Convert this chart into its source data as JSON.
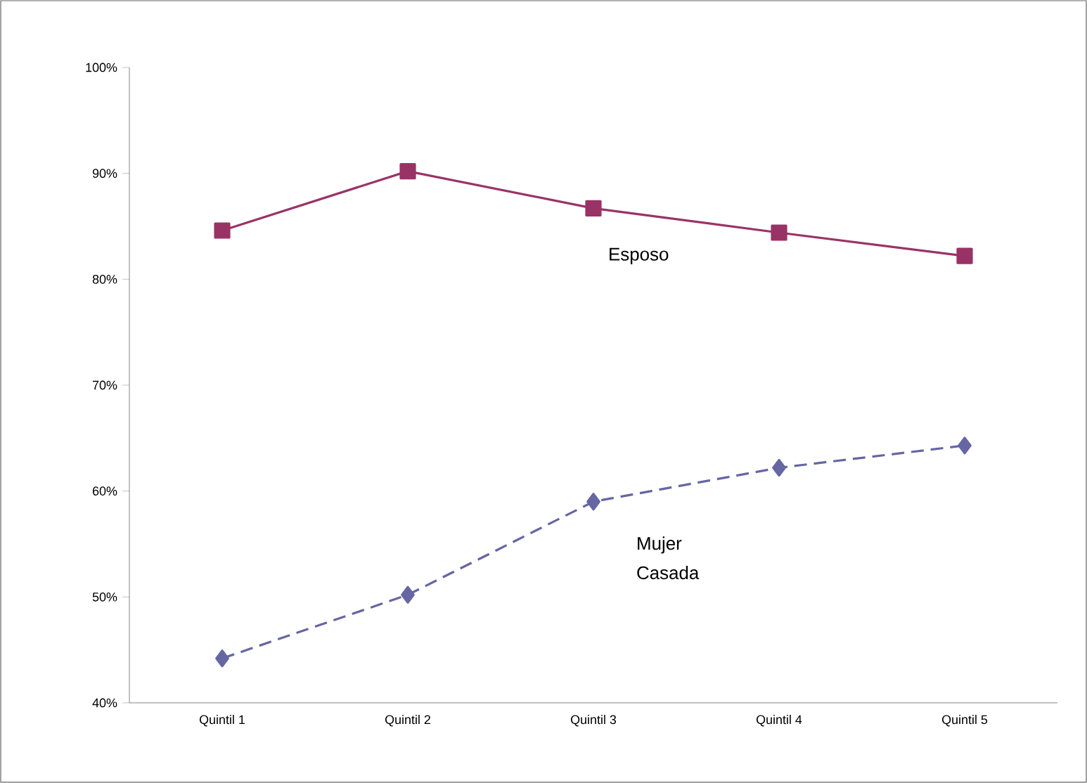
{
  "chart_data": {
    "type": "line",
    "categories": [
      "Quintil 1",
      "Quintil 2",
      "Quintil 3",
      "Quintil 4",
      "Quintil 5"
    ],
    "series": [
      {
        "name": "Esposo",
        "color": "#993366",
        "values": [
          84.6,
          90.2,
          86.7,
          84.4,
          82.2
        ],
        "marker": "square",
        "line_style": "solid"
      },
      {
        "name": "Mujer Casada",
        "color": "#6666a3",
        "values": [
          44.2,
          50.2,
          59.0,
          62.2,
          64.3
        ],
        "marker": "diamond",
        "line_style": "dashed"
      }
    ],
    "ylim": [
      40,
      100
    ],
    "yticks": [
      {
        "value": 40,
        "label": "40%"
      },
      {
        "value": 50,
        "label": "50%"
      },
      {
        "value": 60,
        "label": "60%"
      },
      {
        "value": 70,
        "label": "70%"
      },
      {
        "value": 80,
        "label": "80%"
      },
      {
        "value": 90,
        "label": "90%"
      },
      {
        "value": 100,
        "label": "100%"
      }
    ],
    "tick_labels": true
  }
}
